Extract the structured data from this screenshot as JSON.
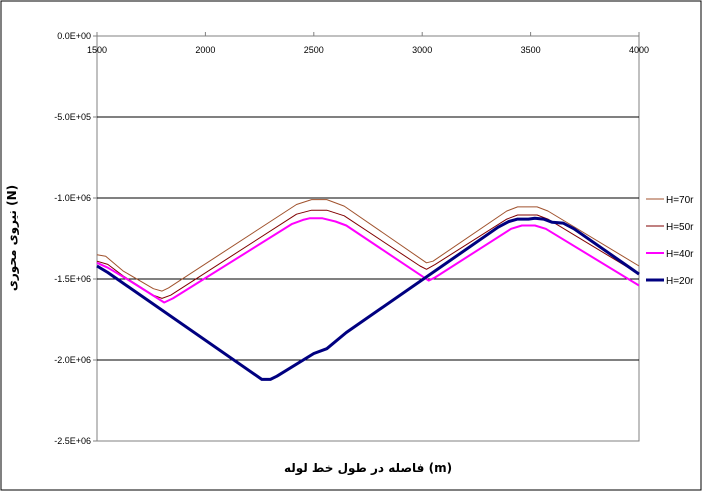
{
  "chart_data": {
    "type": "line",
    "title": "",
    "xlabel": "فاصله در طول خط لوله (m)",
    "ylabel": "نیروی محوری (N)",
    "xlim": [
      1500,
      4000
    ],
    "ylim": [
      -2500000,
      0
    ],
    "x_ticks": [
      "1500",
      "2000",
      "2500",
      "3000",
      "3500",
      "4000"
    ],
    "y_ticks": [
      "0.0E+00",
      "-5.0E+05",
      "-1.0E+06",
      "-1.5E+06",
      "-2.0E+06",
      "-2.5E+06"
    ],
    "grid": "horizontal",
    "legend_position": "right",
    "series": [
      {
        "name": "H=70r",
        "color": "#A0522D",
        "points": [
          [
            1500,
            -1350000
          ],
          [
            1540,
            -1360000
          ],
          [
            1620,
            -1450000
          ],
          [
            1760,
            -1560000
          ],
          [
            1800,
            -1575000
          ],
          [
            1830,
            -1555000
          ],
          [
            2420,
            -1040000
          ],
          [
            2490,
            -1010000
          ],
          [
            2560,
            -1010000
          ],
          [
            2640,
            -1050000
          ],
          [
            3020,
            -1400000
          ],
          [
            3050,
            -1390000
          ],
          [
            3390,
            -1080000
          ],
          [
            3440,
            -1055000
          ],
          [
            3530,
            -1055000
          ],
          [
            3580,
            -1080000
          ],
          [
            4000,
            -1420000
          ]
        ]
      },
      {
        "name": "H=50r",
        "color": "#800000",
        "points": [
          [
            1500,
            -1390000
          ],
          [
            1550,
            -1410000
          ],
          [
            1620,
            -1480000
          ],
          [
            1760,
            -1600000
          ],
          [
            1800,
            -1620000
          ],
          [
            1840,
            -1600000
          ],
          [
            2420,
            -1100000
          ],
          [
            2490,
            -1075000
          ],
          [
            2560,
            -1075000
          ],
          [
            2640,
            -1110000
          ],
          [
            2990,
            -1420000
          ],
          [
            3020,
            -1440000
          ],
          [
            3060,
            -1410000
          ],
          [
            3390,
            -1130000
          ],
          [
            3440,
            -1105000
          ],
          [
            3530,
            -1105000
          ],
          [
            3580,
            -1130000
          ],
          [
            4000,
            -1470000
          ]
        ]
      },
      {
        "name": "H=40r",
        "color": "#FF00FF",
        "points": [
          [
            1500,
            -1400000
          ],
          [
            1550,
            -1430000
          ],
          [
            1650,
            -1510000
          ],
          [
            1780,
            -1620000
          ],
          [
            1810,
            -1645000
          ],
          [
            1850,
            -1620000
          ],
          [
            2400,
            -1160000
          ],
          [
            2450,
            -1135000
          ],
          [
            2480,
            -1125000
          ],
          [
            2540,
            -1125000
          ],
          [
            2600,
            -1145000
          ],
          [
            2650,
            -1170000
          ],
          [
            3030,
            -1510000
          ],
          [
            3060,
            -1490000
          ],
          [
            3410,
            -1190000
          ],
          [
            3460,
            -1170000
          ],
          [
            3520,
            -1170000
          ],
          [
            3570,
            -1190000
          ],
          [
            4000,
            -1540000
          ]
        ]
      },
      {
        "name": "H=20r",
        "color": "#000080",
        "points": [
          [
            1500,
            -1420000
          ],
          [
            1550,
            -1460000
          ],
          [
            2260,
            -2120000
          ],
          [
            2300,
            -2120000
          ],
          [
            2330,
            -2100000
          ],
          [
            2500,
            -1960000
          ],
          [
            2560,
            -1930000
          ],
          [
            2650,
            -1830000
          ],
          [
            3350,
            -1180000
          ],
          [
            3400,
            -1145000
          ],
          [
            3440,
            -1130000
          ],
          [
            3490,
            -1130000
          ],
          [
            3520,
            -1125000
          ],
          [
            3560,
            -1130000
          ],
          [
            3600,
            -1150000
          ],
          [
            3650,
            -1155000
          ],
          [
            3700,
            -1190000
          ],
          [
            4000,
            -1470000
          ]
        ]
      }
    ]
  }
}
